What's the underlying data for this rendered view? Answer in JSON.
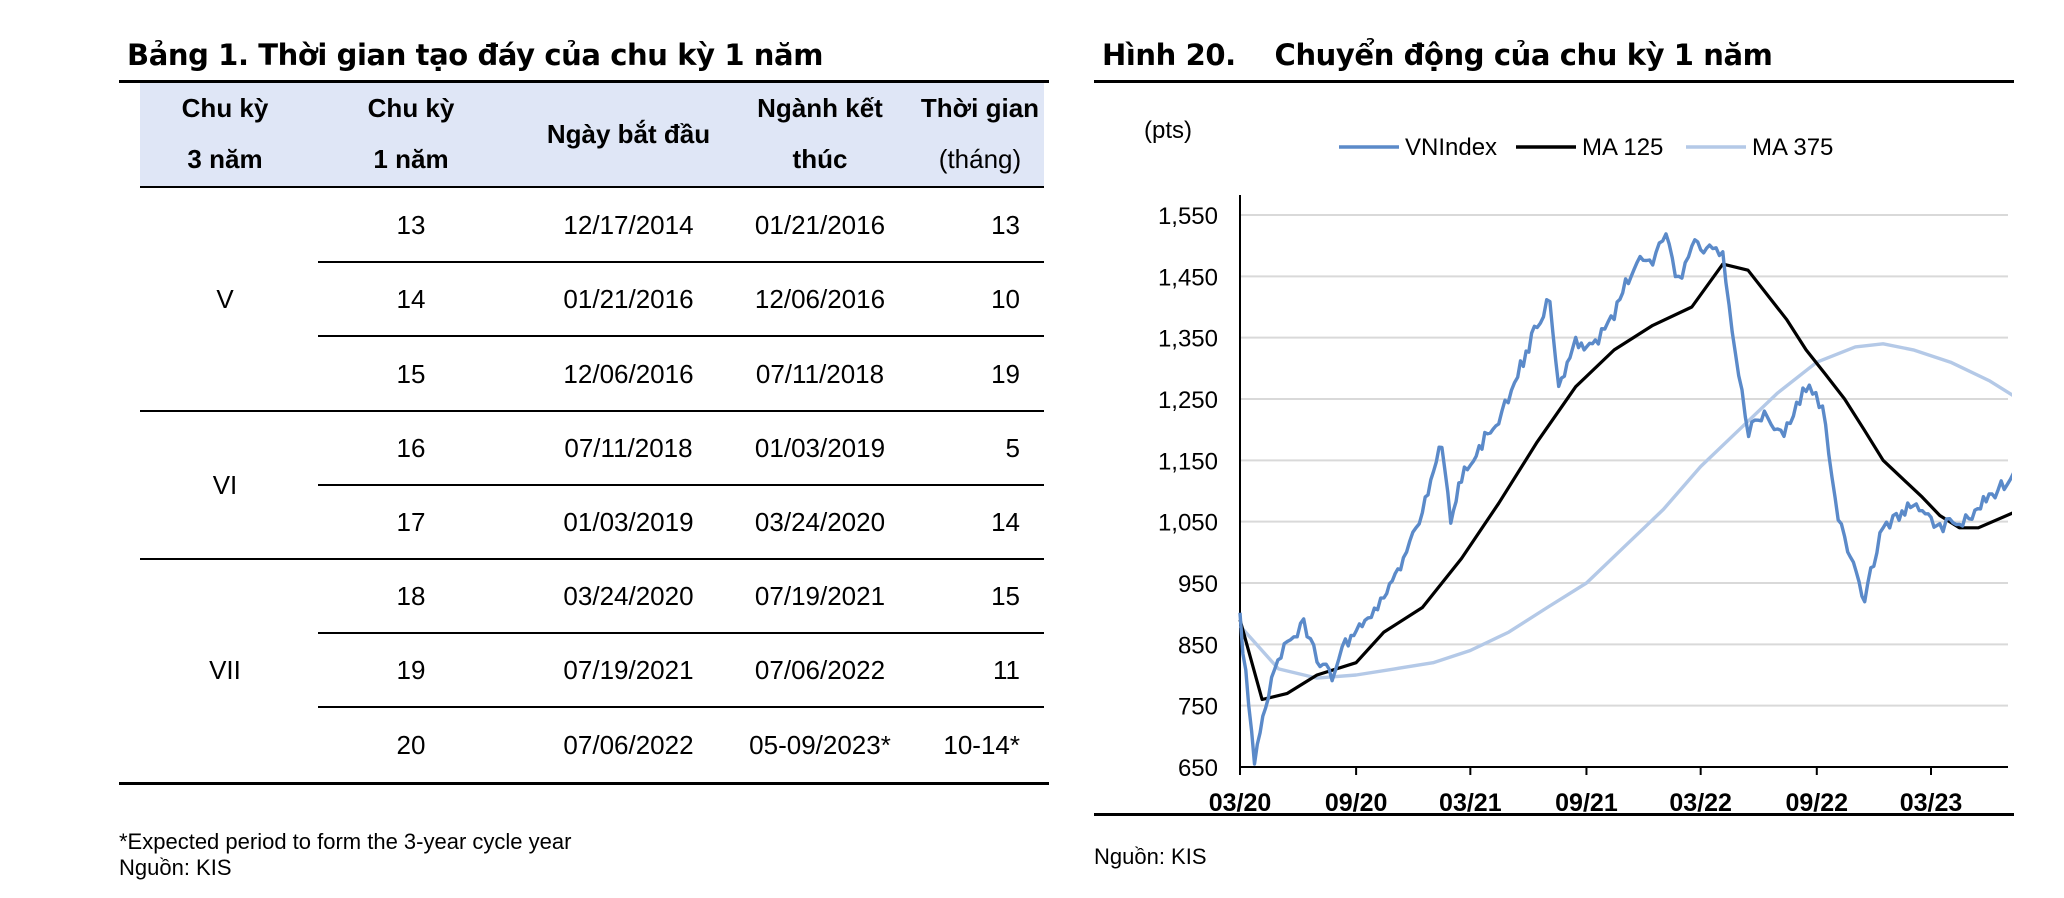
{
  "table": {
    "title": "Bảng 1. Thời gian tạo đáy của chu kỳ 1 năm",
    "headers": {
      "cycle3": [
        "Chu kỳ",
        "3 năm"
      ],
      "cycle1": [
        "Chu kỳ",
        "1 năm"
      ],
      "start": "Ngày bắt đầu",
      "end": [
        "Ngành kết",
        "thúc"
      ],
      "months": [
        "Thời gian",
        "(tháng)"
      ]
    },
    "groups": [
      {
        "cycle3": "V",
        "rows": [
          {
            "cycle1": "13",
            "start": "12/17/2014",
            "end": "01/21/2016",
            "months": "13"
          },
          {
            "cycle1": "14",
            "start": "01/21/2016",
            "end": "12/06/2016",
            "months": "10"
          },
          {
            "cycle1": "15",
            "start": "12/06/2016",
            "end": "07/11/2018",
            "months": "19"
          }
        ]
      },
      {
        "cycle3": "VI",
        "rows": [
          {
            "cycle1": "16",
            "start": "07/11/2018",
            "end": "01/03/2019",
            "months": "5"
          },
          {
            "cycle1": "17",
            "start": "01/03/2019",
            "end": "03/24/2020",
            "months": "14"
          }
        ]
      },
      {
        "cycle3": "VII",
        "rows": [
          {
            "cycle1": "18",
            "start": "03/24/2020",
            "end": "07/19/2021",
            "months": "15"
          },
          {
            "cycle1": "19",
            "start": "07/19/2021",
            "end": "07/06/2022",
            "months": "11"
          },
          {
            "cycle1": "20",
            "start": "07/06/2022",
            "end": "05-09/2023*",
            "months": "10-14*"
          }
        ]
      }
    ],
    "footnote": "*Expected period to form the 3-year cycle year",
    "source": "Nguồn: KIS"
  },
  "figure": {
    "title": "Hình 20.    Chuyển động của chu kỳ 1 năm",
    "source": "Nguồn: KIS"
  },
  "chart_data": {
    "type": "line",
    "ylabel": "(pts)",
    "ylim": [
      650,
      1550
    ],
    "yticks": [
      650,
      750,
      850,
      950,
      1050,
      1150,
      1250,
      1350,
      1450,
      1550
    ],
    "ytick_labels": [
      "650",
      "750",
      "850",
      "950",
      "1,050",
      "1,150",
      "1,250",
      "1,350",
      "1,450",
      "1,550"
    ],
    "xticks": [
      "2020-03",
      "2020-09",
      "2021-03",
      "2021-09",
      "2022-03",
      "2022-09",
      "2023-03"
    ],
    "xtick_labels": [
      "03/20",
      "09/20",
      "03/21",
      "09/21",
      "03/22",
      "09/22",
      "03/23"
    ],
    "xlim": [
      "2020-03",
      "2023-07"
    ],
    "grid": "horizontal",
    "legend_position": "top",
    "series": [
      {
        "name": "VNIndex",
        "color": "#5b8ac9",
        "x": [
          "2020-03-01",
          "2020-03-24",
          "2020-04-15",
          "2020-05-15",
          "2020-06-10",
          "2020-07-01",
          "2020-07-25",
          "2020-08-15",
          "2020-09-15",
          "2020-10-15",
          "2020-11-15",
          "2020-12-15",
          "2021-01-15",
          "2021-01-29",
          "2021-02-15",
          "2021-03-15",
          "2021-04-15",
          "2021-05-15",
          "2021-06-15",
          "2021-07-05",
          "2021-07-19",
          "2021-08-15",
          "2021-09-15",
          "2021-10-15",
          "2021-11-20",
          "2021-12-15",
          "2022-01-05",
          "2022-01-25",
          "2022-02-15",
          "2022-03-15",
          "2022-04-05",
          "2022-04-25",
          "2022-05-16",
          "2022-06-10",
          "2022-07-06",
          "2022-08-15",
          "2022-09-10",
          "2022-09-30",
          "2022-10-20",
          "2022-11-16",
          "2022-12-10",
          "2023-01-05",
          "2023-02-01",
          "2023-02-20",
          "2023-03-15",
          "2023-04-10",
          "2023-05-05",
          "2023-06-01",
          "2023-06-25",
          "2023-07-10"
        ],
        "y": [
          890,
          660,
          770,
          860,
          880,
          830,
          800,
          850,
          890,
          920,
          990,
          1070,
          1180,
          1050,
          1120,
          1170,
          1220,
          1290,
          1370,
          1420,
          1260,
          1340,
          1340,
          1390,
          1480,
          1470,
          1520,
          1440,
          1500,
          1490,
          1490,
          1320,
          1200,
          1220,
          1190,
          1270,
          1240,
          1080,
          1000,
          920,
          1030,
          1060,
          1080,
          1070,
          1040,
          1050,
          1060,
          1090,
          1110,
          1130
        ]
      },
      {
        "name": "MA 125",
        "color": "#000000",
        "x": [
          "2020-03-01",
          "2020-04-05",
          "2020-05-15",
          "2020-07-01",
          "2020-09-01",
          "2020-10-15",
          "2020-12-15",
          "2021-02-15",
          "2021-04-15",
          "2021-06-15",
          "2021-08-15",
          "2021-10-15",
          "2021-12-15",
          "2022-02-15",
          "2022-04-05",
          "2022-05-15",
          "2022-07-15",
          "2022-08-15",
          "2022-09-15",
          "2022-10-15",
          "2022-11-15",
          "2022-12-15",
          "2023-01-15",
          "2023-02-15",
          "2023-03-15",
          "2023-04-15",
          "2023-05-15",
          "2023-07-10"
        ],
        "y": [
          890,
          760,
          770,
          800,
          820,
          870,
          910,
          990,
          1080,
          1180,
          1270,
          1330,
          1370,
          1400,
          1470,
          1460,
          1380,
          1330,
          1290,
          1250,
          1200,
          1150,
          1120,
          1090,
          1060,
          1040,
          1040,
          1065
        ]
      },
      {
        "name": "MA 375",
        "color": "#b4c9e7",
        "x": [
          "2020-03-01",
          "2020-05-01",
          "2020-07-01",
          "2020-09-01",
          "2020-11-01",
          "2021-01-01",
          "2021-03-01",
          "2021-05-01",
          "2021-07-01",
          "2021-09-01",
          "2021-11-01",
          "2022-01-01",
          "2022-03-01",
          "2022-05-01",
          "2022-07-01",
          "2022-09-01",
          "2022-11-01",
          "2022-12-15",
          "2023-02-01",
          "2023-04-01",
          "2023-06-01",
          "2023-07-10"
        ],
        "y": [
          880,
          810,
          795,
          800,
          810,
          820,
          840,
          870,
          910,
          950,
          1010,
          1070,
          1140,
          1200,
          1260,
          1310,
          1335,
          1340,
          1330,
          1310,
          1280,
          1255
        ]
      }
    ]
  }
}
